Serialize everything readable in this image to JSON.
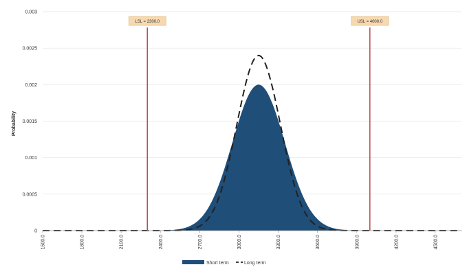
{
  "chart_data": {
    "type": "area",
    "xlabel": "",
    "ylabel": "Probability",
    "xlim": [
      1500,
      4700
    ],
    "ylim": [
      0,
      0.003
    ],
    "grid": true,
    "y_ticks": [
      "0",
      "0.0005",
      "0.001",
      "0.0015",
      "0.002",
      "0.0025",
      "0.003"
    ],
    "x_ticks": [
      "1500.0",
      "1800.0",
      "2100.0",
      "2400.0",
      "2700.0",
      "3000.0",
      "3300.0",
      "3600.0",
      "3900.0",
      "4200.0",
      "4500.0"
    ],
    "spec_limits": [
      {
        "label": "LSL = 2300.0",
        "x": 2300,
        "color": "#c0504d"
      },
      {
        "label": "USL = 4000.0",
        "x": 4000,
        "color": "#c0504d"
      }
    ],
    "series": [
      {
        "name": "Short term",
        "kind": "filled-area",
        "color": "#1f4e79",
        "mean": 3150,
        "peak": 0.002
      },
      {
        "name": "Long term",
        "kind": "dashed-line",
        "color": "#222222",
        "mean": 3150,
        "peak": 0.0024
      }
    ],
    "legend_position": "bottom"
  }
}
